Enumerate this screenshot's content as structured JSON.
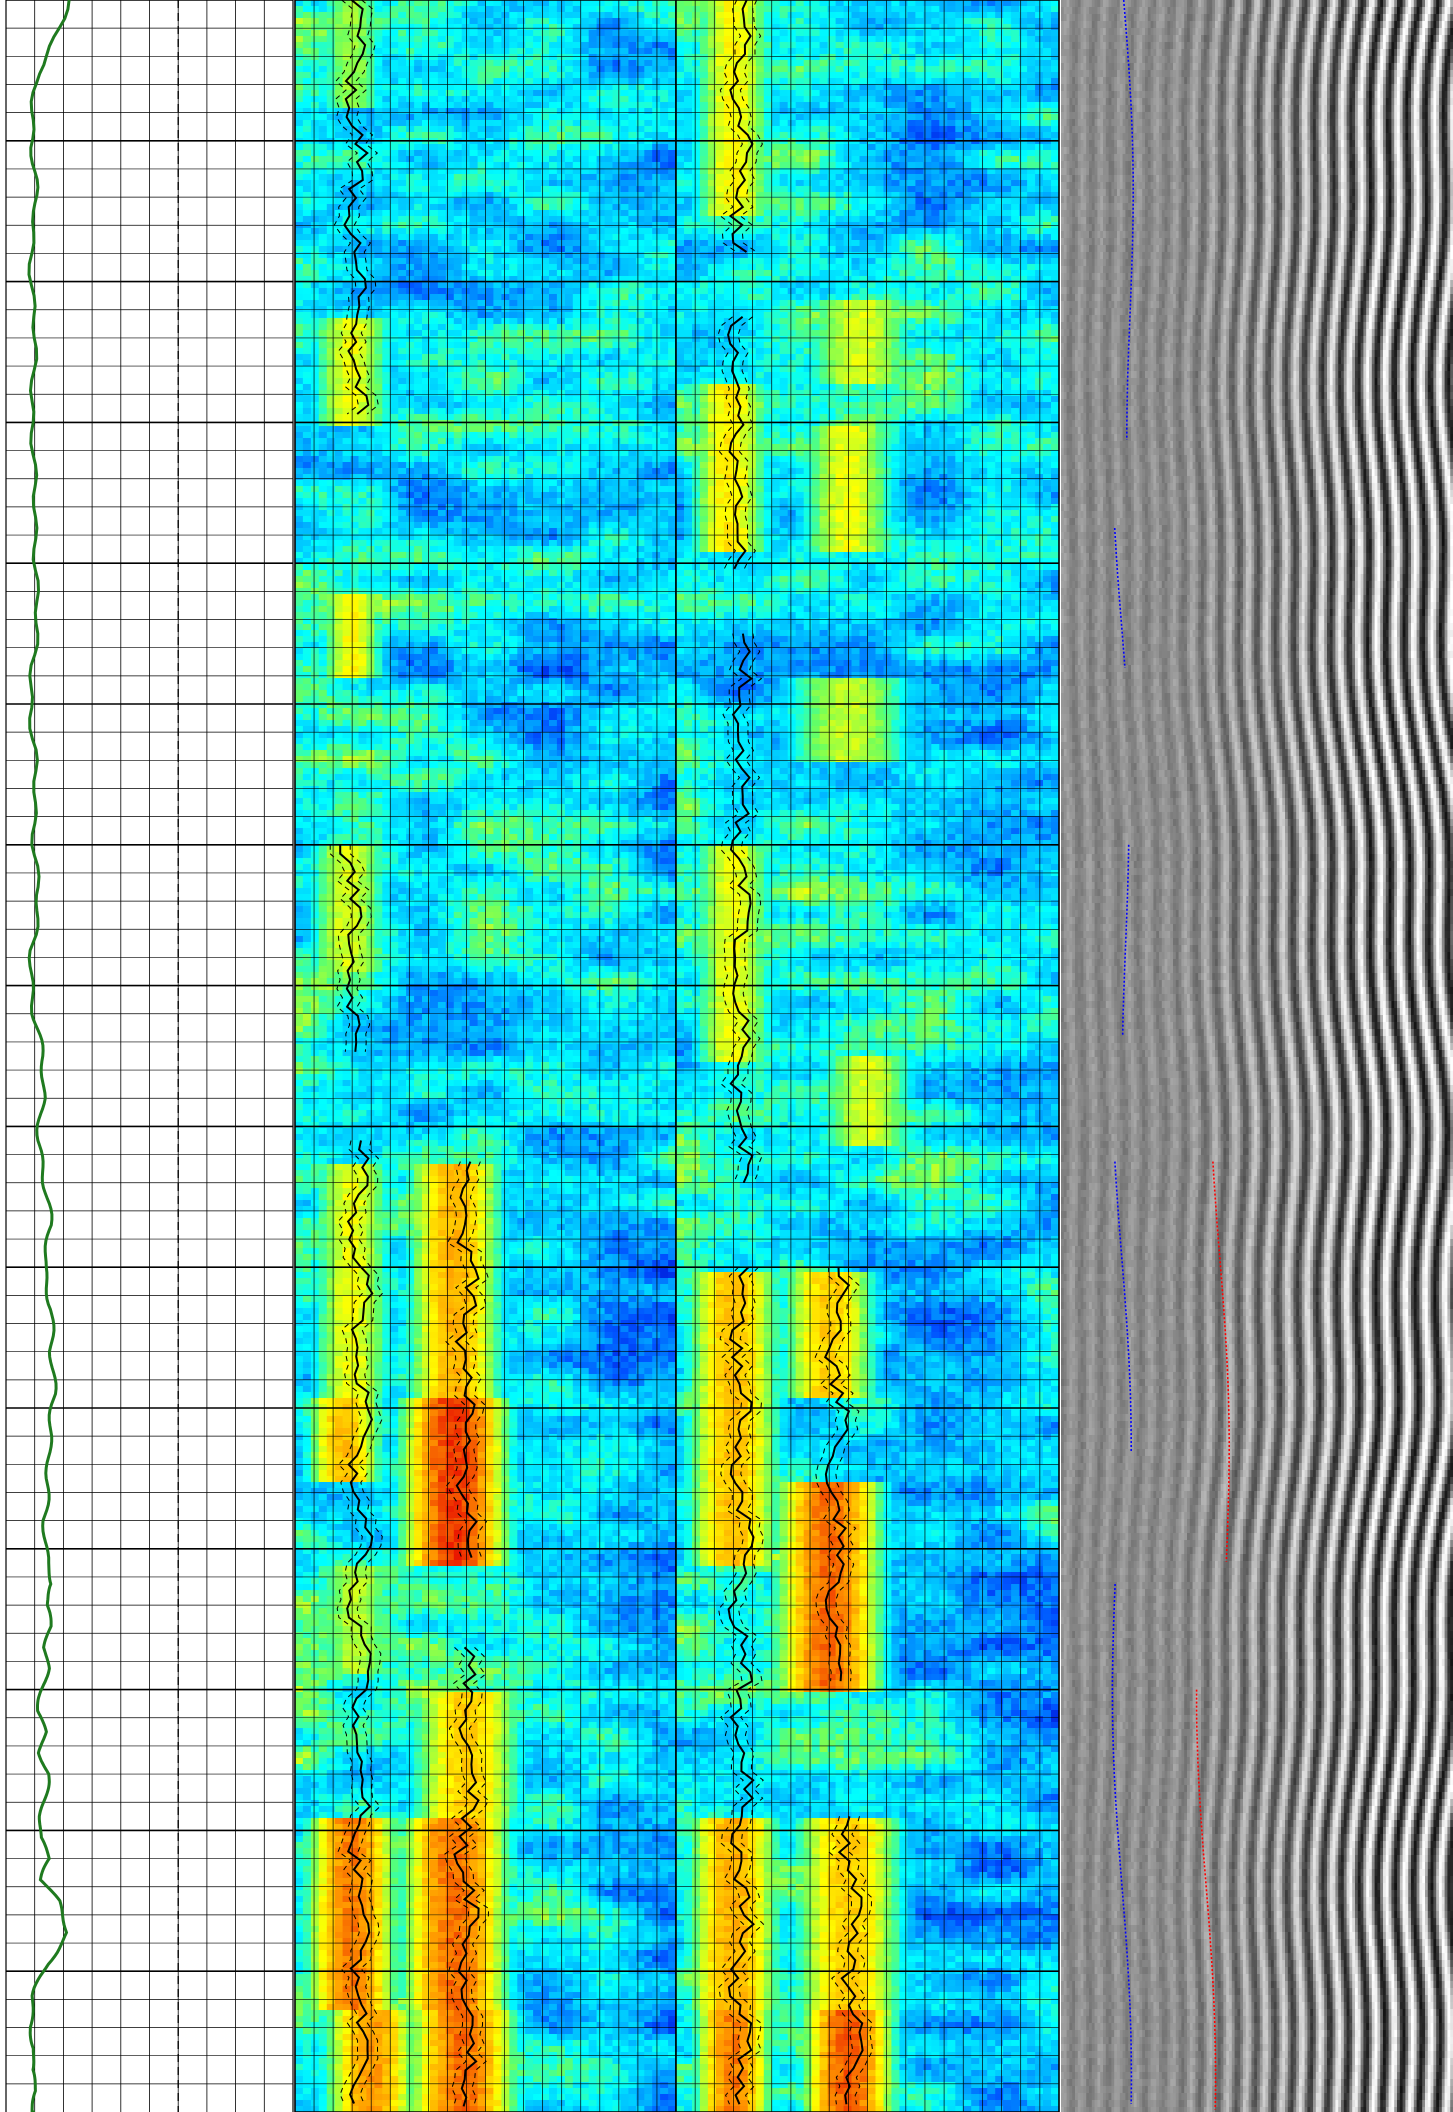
{
  "chart_data": {
    "type": "heatmap",
    "title": "",
    "tracks": [
      {
        "name": "",
        "kind": "curve",
        "curve_color": "#1f7a1f",
        "grid": true,
        "dashed_center_line": true,
        "x": [
          0.22,
          0.11,
          0.09,
          0.1,
          0.09,
          0.1,
          0.09,
          0.11,
          0.1,
          0.09,
          0.1,
          0.11,
          0.09,
          0.1,
          0.12,
          0.13,
          0.12,
          0.13,
          0.15,
          0.14,
          0.16,
          0.15,
          0.17,
          0.16,
          0.14,
          0.13,
          0.15,
          0.17,
          0.14,
          0.15,
          0.13,
          0.14,
          0.13,
          0.12,
          0.14,
          0.12,
          0.14,
          0.13,
          0.12,
          0.12,
          0.16,
          0.13,
          0.18,
          0.21,
          0.14,
          0.1,
          0.09,
          0.1,
          0.08,
          0.1,
          0.09,
          0.1,
          0.09
        ],
        "depth": [
          0,
          0.035,
          0.07,
          0.1,
          0.14,
          0.18,
          0.22,
          0.26,
          0.3,
          0.34,
          0.38,
          0.42,
          0.45,
          0.48,
          0.5,
          0.52,
          0.54,
          0.56,
          0.58,
          0.6,
          0.62,
          0.64,
          0.66,
          0.68,
          0.7,
          0.72,
          0.74,
          0.75,
          0.76,
          0.77,
          0.78,
          0.79,
          0.8,
          0.81,
          0.82,
          0.83,
          0.84,
          0.85,
          0.86,
          0.87,
          0.88,
          0.89,
          0.9,
          0.915,
          0.93,
          0.945,
          0.96,
          0.97,
          0.98,
          0.99,
          1,
          1,
          1
        ]
      },
      {
        "name": "",
        "kind": "heatmap",
        "colorscale": [
          "#0000c8",
          "#0050ff",
          "#00b4ff",
          "#00ffff",
          "#64ff64",
          "#ffff00",
          "#ff9600",
          "#e60000"
        ],
        "hot_bands": [
          {
            "from": 0.0,
            "to": 0.05,
            "x": 0.15,
            "w": 0.08,
            "level": 0.62
          },
          {
            "from": 0.15,
            "to": 0.2,
            "x": 0.15,
            "w": 0.1,
            "level": 0.7
          },
          {
            "from": 0.28,
            "to": 0.32,
            "x": 0.15,
            "w": 0.08,
            "level": 0.72
          },
          {
            "from": 0.4,
            "to": 0.46,
            "x": 0.14,
            "w": 0.1,
            "level": 0.68
          },
          {
            "from": 0.55,
            "to": 0.66,
            "x": 0.15,
            "w": 0.1,
            "level": 0.7
          },
          {
            "from": 0.55,
            "to": 0.66,
            "x": 0.42,
            "w": 0.12,
            "level": 0.82
          },
          {
            "from": 0.66,
            "to": 0.74,
            "x": 0.42,
            "w": 0.14,
            "level": 0.95
          },
          {
            "from": 0.66,
            "to": 0.7,
            "x": 0.13,
            "w": 0.1,
            "level": 0.8
          },
          {
            "from": 0.74,
            "to": 0.79,
            "x": 0.16,
            "w": 0.1,
            "level": 0.65
          },
          {
            "from": 0.8,
            "to": 0.86,
            "x": 0.45,
            "w": 0.14,
            "level": 0.78
          },
          {
            "from": 0.86,
            "to": 0.95,
            "x": 0.15,
            "w": 0.12,
            "level": 0.88
          },
          {
            "from": 0.86,
            "to": 0.95,
            "x": 0.42,
            "w": 0.14,
            "level": 0.9
          },
          {
            "from": 0.95,
            "to": 1.0,
            "x": 0.2,
            "w": 0.12,
            "level": 0.85
          },
          {
            "from": 0.95,
            "to": 1.0,
            "x": 0.44,
            "w": 0.14,
            "level": 0.9
          }
        ],
        "picks": [
          {
            "from": 0.0,
            "to": 0.2,
            "x": 0.16
          },
          {
            "from": 0.4,
            "to": 0.5,
            "x": 0.15
          },
          {
            "from": 0.54,
            "to": 1.0,
            "x": 0.17
          },
          {
            "from": 0.55,
            "to": 0.74,
            "x": 0.45
          },
          {
            "from": 0.78,
            "to": 1.0,
            "x": 0.45
          }
        ]
      },
      {
        "name": "",
        "kind": "heatmap",
        "colorscale": [
          "#0000c8",
          "#0050ff",
          "#00b4ff",
          "#00ffff",
          "#64ff64",
          "#ffff00",
          "#ff9600",
          "#e60000"
        ],
        "hot_bands": [
          {
            "from": 0.0,
            "to": 0.1,
            "x": 0.15,
            "w": 0.1,
            "level": 0.72
          },
          {
            "from": 0.14,
            "to": 0.18,
            "x": 0.48,
            "w": 0.14,
            "level": 0.68
          },
          {
            "from": 0.18,
            "to": 0.26,
            "x": 0.14,
            "w": 0.1,
            "level": 0.74
          },
          {
            "from": 0.2,
            "to": 0.26,
            "x": 0.45,
            "w": 0.12,
            "level": 0.7
          },
          {
            "from": 0.32,
            "to": 0.36,
            "x": 0.45,
            "w": 0.16,
            "level": 0.66
          },
          {
            "from": 0.4,
            "to": 0.5,
            "x": 0.15,
            "w": 0.1,
            "level": 0.7
          },
          {
            "from": 0.5,
            "to": 0.54,
            "x": 0.5,
            "w": 0.12,
            "level": 0.68
          },
          {
            "from": 0.6,
            "to": 0.66,
            "x": 0.4,
            "w": 0.12,
            "level": 0.78
          },
          {
            "from": 0.6,
            "to": 0.74,
            "x": 0.15,
            "w": 0.12,
            "level": 0.8
          },
          {
            "from": 0.7,
            "to": 0.8,
            "x": 0.4,
            "w": 0.14,
            "level": 0.9
          },
          {
            "from": 0.86,
            "to": 0.95,
            "x": 0.15,
            "w": 0.12,
            "level": 0.82
          },
          {
            "from": 0.86,
            "to": 0.95,
            "x": 0.45,
            "w": 0.14,
            "level": 0.78
          },
          {
            "from": 0.95,
            "to": 1.0,
            "x": 0.15,
            "w": 0.1,
            "level": 0.88
          },
          {
            "from": 0.95,
            "to": 1.0,
            "x": 0.45,
            "w": 0.12,
            "level": 0.92
          }
        ],
        "picks": [
          {
            "from": 0.0,
            "to": 0.12,
            "x": 0.17
          },
          {
            "from": 0.15,
            "to": 0.27,
            "x": 0.16
          },
          {
            "from": 0.3,
            "to": 0.56,
            "x": 0.17
          },
          {
            "from": 0.6,
            "to": 1.0,
            "x": 0.17
          },
          {
            "from": 0.6,
            "to": 0.8,
            "x": 0.42
          },
          {
            "from": 0.86,
            "to": 1.0,
            "x": 0.46
          }
        ]
      },
      {
        "name": "",
        "kind": "waveform",
        "traces": [
          {
            "color": "#0000ff",
            "segments": [
              [
                0.0,
                0.21,
                0.16
              ],
              [
                0.25,
                0.32,
                0.15
              ],
              [
                0.4,
                0.49,
                0.16
              ],
              [
                0.55,
                0.69,
                0.15
              ],
              [
                0.75,
                1.0,
                0.14
              ]
            ]
          },
          {
            "color": "#ff0000",
            "segments": [
              [
                0.55,
                0.74,
                0.4
              ],
              [
                0.8,
                1.0,
                0.36
              ]
            ]
          }
        ]
      }
    ]
  }
}
